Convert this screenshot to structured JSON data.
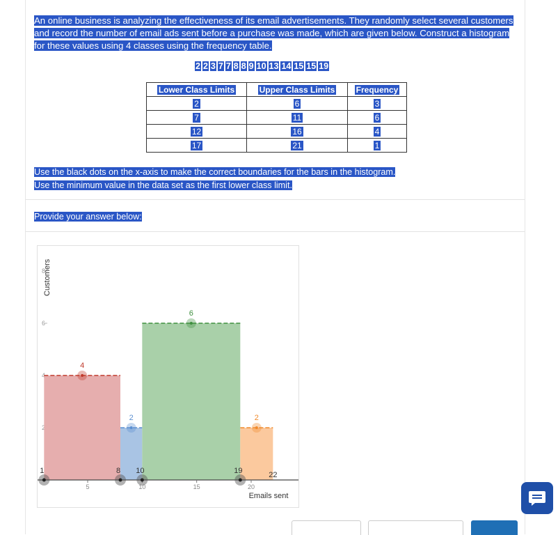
{
  "question": {
    "text": "An online business is analyzing the effectiveness of its email advertisements.  They randomly select several customers and record the number of email ads sent before a purchase was made, which are given below.  Construct a histogram for these values using 4 classes using the frequency table."
  },
  "dataset": [
    "2",
    "2",
    "3",
    "7",
    "7",
    "8",
    "8",
    "9",
    "10",
    "13",
    "14",
    "15",
    "15",
    "19"
  ],
  "table": {
    "headers": [
      "Lower Class Limits",
      "Upper Class Limits",
      "Frequency"
    ],
    "rows": [
      [
        "2",
        "6",
        "3"
      ],
      [
        "7",
        "11",
        "6"
      ],
      [
        "12",
        "16",
        "4"
      ],
      [
        "17",
        "21",
        "1"
      ]
    ]
  },
  "instructions": {
    "line1": "Use the black dots on the x-axis to make the correct boundaries for the bars in the histogram.",
    "line2": "Use the minimum value in the data set as the first lower class limit."
  },
  "prompt": "Provide your answer below:",
  "chart_data": {
    "type": "bar",
    "xlabel": "Emails sent",
    "ylabel": "Customers",
    "xlim": [
      0,
      22.5
    ],
    "ylim": [
      0,
      9
    ],
    "x_ticks": [
      "5",
      "10",
      "15",
      "20"
    ],
    "y_ticks": [
      "2",
      "4",
      "6",
      "8"
    ],
    "bars": [
      {
        "x0": 1,
        "x1": 8,
        "height": 4,
        "label": "4",
        "color": "#e6aeae",
        "line_color": "#c0392b"
      },
      {
        "x0": 8,
        "x1": 10,
        "height": 2,
        "label": "2",
        "color": "#a9c4e4",
        "line_color": "#5b8fd1"
      },
      {
        "x0": 10,
        "x1": 19,
        "height": 6,
        "label": "6",
        "color": "#a9d0a9",
        "line_color": "#3f8f3f"
      },
      {
        "x0": 19,
        "x1": 22,
        "height": 2,
        "label": "2",
        "color": "#fbc99e",
        "line_color": "#f08a2c"
      }
    ],
    "boundary_points": [
      {
        "x": 1,
        "label": "1"
      },
      {
        "x": 8,
        "label": "8"
      },
      {
        "x": 10,
        "label": "10"
      },
      {
        "x": 19,
        "label": "19"
      }
    ],
    "end_label": "22"
  }
}
